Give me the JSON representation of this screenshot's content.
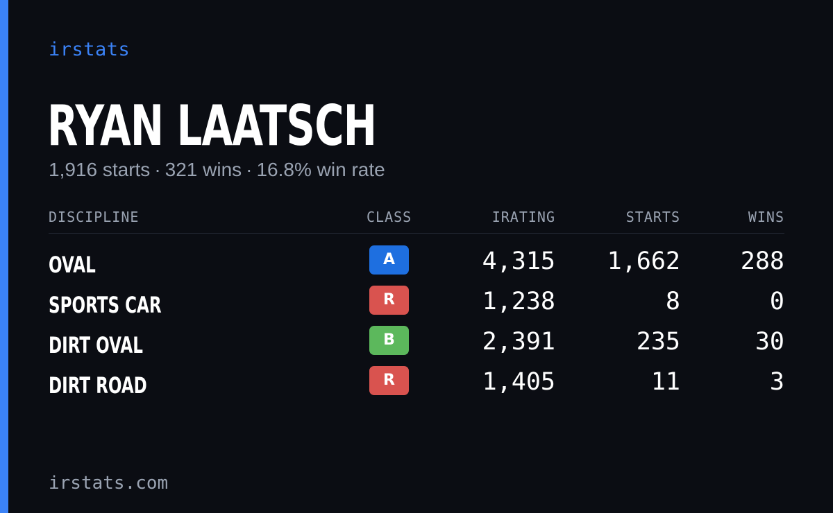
{
  "brand": "irstats",
  "player": {
    "name": "RYAN LAATSCH"
  },
  "summary": {
    "starts": "1,916 starts",
    "wins": "321 wins",
    "win_rate": "16.8% win rate",
    "separator": "·"
  },
  "table": {
    "headers": {
      "discipline": "DISCIPLINE",
      "class": "CLASS",
      "irating": "IRATING",
      "starts": "STARTS",
      "wins": "WINS"
    },
    "rows": [
      {
        "discipline": "OVAL",
        "class": "A",
        "class_color": "#1e6fe0",
        "irating": "4,315",
        "starts": "1,662",
        "wins": "288"
      },
      {
        "discipline": "SPORTS CAR",
        "class": "R",
        "class_color": "#d9534f",
        "irating": "1,238",
        "starts": "8",
        "wins": "0"
      },
      {
        "discipline": "DIRT OVAL",
        "class": "B",
        "class_color": "#5cb85c",
        "irating": "2,391",
        "starts": "235",
        "wins": "30"
      },
      {
        "discipline": "DIRT ROAD",
        "class": "R",
        "class_color": "#d9534f",
        "irating": "1,405",
        "starts": "11",
        "wins": "3"
      }
    ]
  },
  "footer": "irstats.com",
  "colors": {
    "accent": "#3b82f6",
    "background": "#0b0d13",
    "muted_text": "#9aa3b2"
  }
}
